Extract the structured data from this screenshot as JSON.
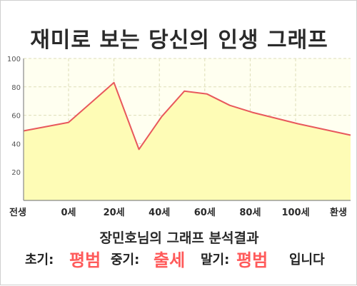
{
  "chart_data": {
    "type": "area",
    "title": "재미로 보는 당신의 인생 그래프",
    "x_tick_labels": [
      "전생",
      "0세",
      "20세",
      "40세",
      "60세",
      "80세",
      "100세",
      "환생"
    ],
    "x": [
      "전생",
      "0세",
      "20세",
      "31세",
      "41세",
      "51세",
      "61세",
      "71세",
      "81세",
      "101세",
      "환생"
    ],
    "values": [
      49,
      55,
      83,
      36,
      59,
      77,
      75,
      67,
      62,
      54,
      46
    ],
    "ylim": [
      0,
      100
    ],
    "y_ticks": [
      20,
      40,
      60,
      80,
      100
    ],
    "grid": true,
    "colors": {
      "line": "#e8585c",
      "fill": "#fefcb6",
      "plot_bg": "#fffff0",
      "axis": "#888888",
      "grid": "#dedeb8"
    }
  },
  "result": {
    "subtitle": "장민호님의 그래프 분석결과",
    "early_label": "초기:",
    "early_value": "평범",
    "middle_label": "중기:",
    "middle_value": "출세",
    "late_label": "말기:",
    "late_value": "평범",
    "suffix": "입니다"
  }
}
